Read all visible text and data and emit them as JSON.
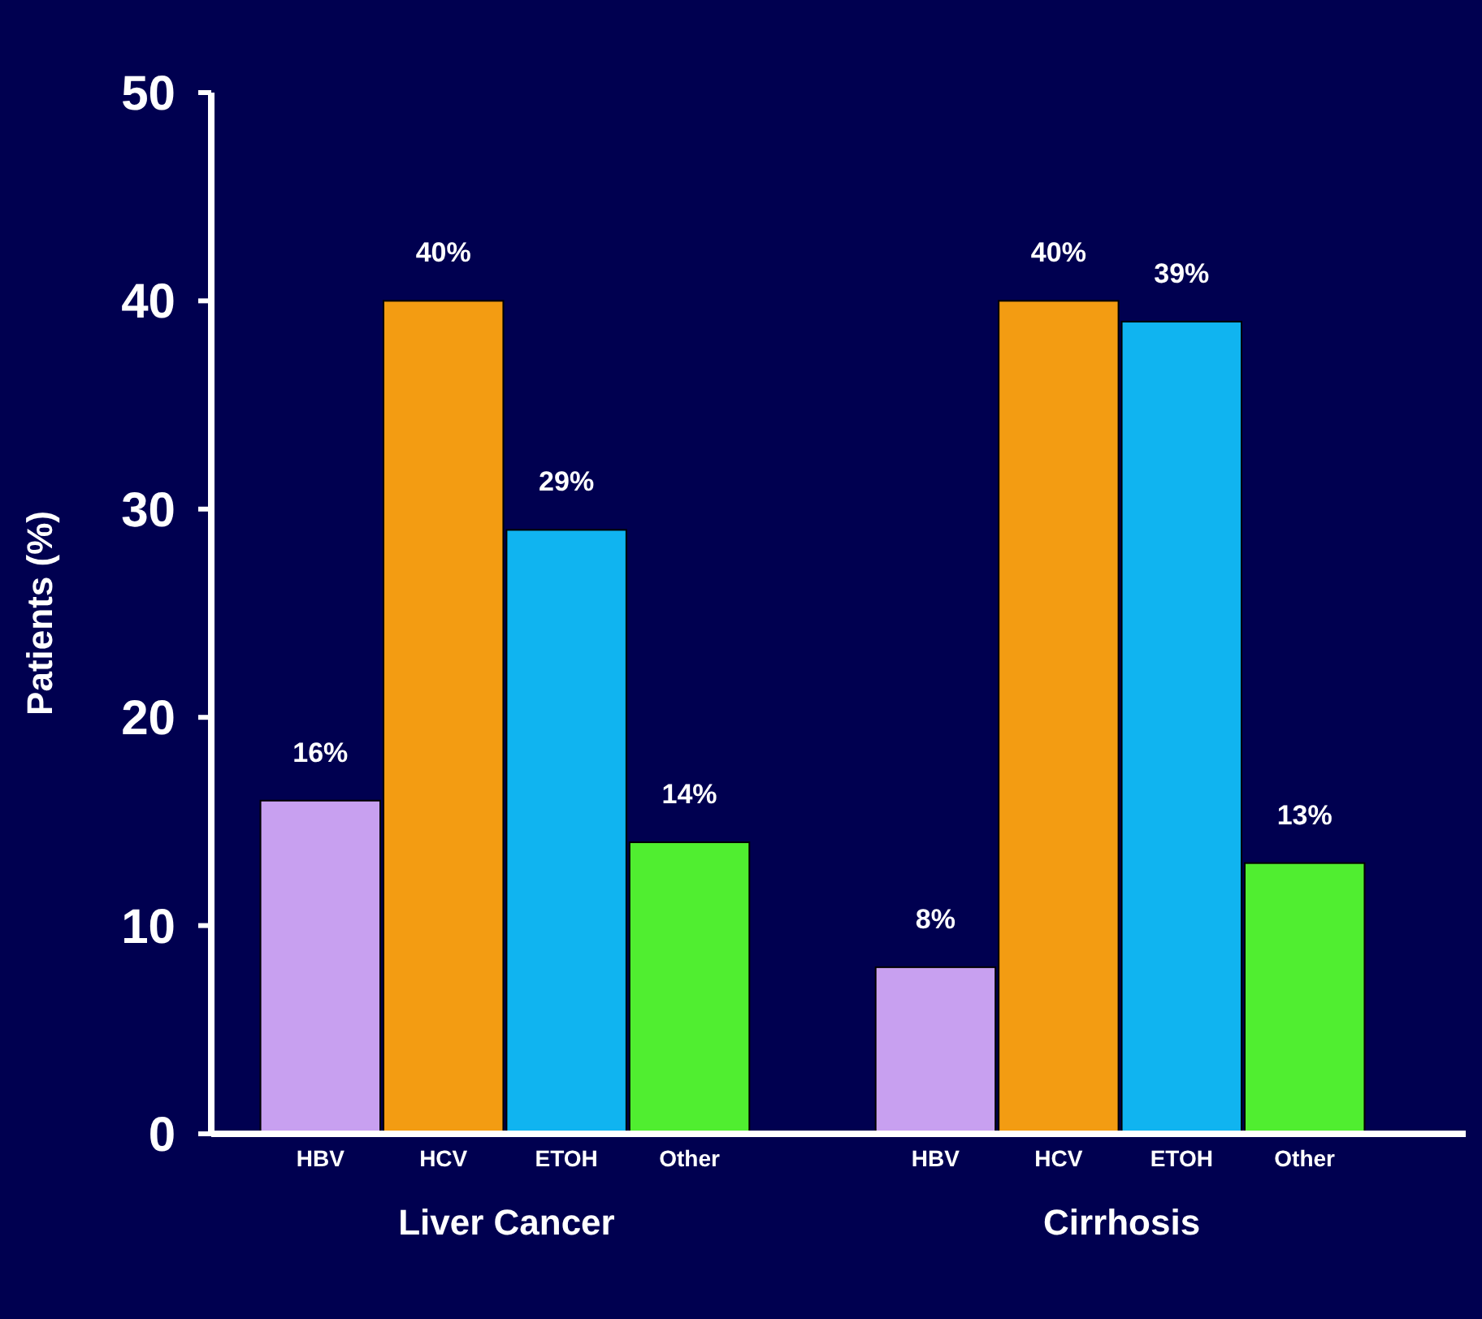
{
  "chart_data": {
    "type": "bar",
    "ylabel": "Patients (%)",
    "categories": [
      "Liver Cancer",
      "Cirrhosis"
    ],
    "series": [
      {
        "name": "HBV",
        "color": "#c8a0f0",
        "values": [
          16,
          8
        ],
        "value_labels": [
          "16%",
          "8%"
        ]
      },
      {
        "name": "HCV",
        "color": "#f39c12",
        "values": [
          40,
          40
        ],
        "value_labels": [
          "40%",
          "40%"
        ]
      },
      {
        "name": "ETOH",
        "color": "#10b4f0",
        "values": [
          29,
          39
        ],
        "value_labels": [
          "29%",
          "39%"
        ]
      },
      {
        "name": "Other",
        "color": "#50ee30",
        "values": [
          14,
          13
        ],
        "value_labels": [
          "14%",
          "13%"
        ]
      }
    ],
    "ylim": [
      0,
      50
    ],
    "yticks": [
      0,
      10,
      20,
      30,
      40,
      50
    ],
    "grid": false
  }
}
